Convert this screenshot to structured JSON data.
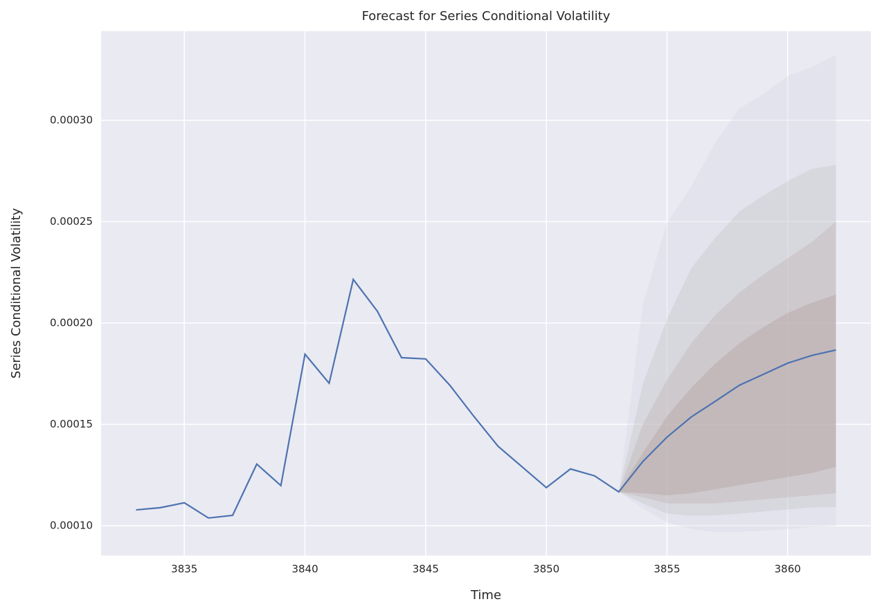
{
  "chart_data": {
    "type": "line",
    "title": "Forecast for Series Conditional Volatility",
    "x_label": "Time",
    "y_label": "Series Conditional Volatility",
    "x": [
      3833,
      3834,
      3835,
      3836,
      3837,
      3838,
      3839,
      3840,
      3841,
      3842,
      3843,
      3844,
      3845,
      3846,
      3847,
      3848,
      3849,
      3850,
      3851,
      3852,
      3853,
      3854,
      3855,
      3856,
      3857,
      3858,
      3859,
      3860,
      3861,
      3862
    ],
    "series": [
      {
        "color": "#4c72b0",
        "values": [
          0.0001078,
          0.0001089,
          0.0001113,
          0.0001038,
          0.0001051,
          0.0001304,
          0.0001198,
          0.0001846,
          0.0001703,
          0.0002215,
          0.0002058,
          0.0001829,
          0.0001823,
          0.0001693,
          0.0001539,
          0.0001392,
          0.000129,
          0.0001188,
          0.000128,
          0.0001246,
          0.0001167,
          0.0001317,
          0.0001437,
          0.0001536,
          0.0001614,
          0.0001693,
          0.0001747,
          0.0001802,
          0.000184,
          0.0001867
        ]
      }
    ],
    "band_x": [
      3853,
      3854,
      3855,
      3856,
      3857,
      3858,
      3859,
      3860,
      3861,
      3862
    ],
    "band_opacity": 0.35,
    "bands": [
      {
        "color": "#d4d6e4",
        "upper": [
          0.0001167,
          0.0002092,
          0.0002495,
          0.0002672,
          0.0002891,
          0.0003058,
          0.000313,
          0.0003218,
          0.0003263,
          0.0003324
        ],
        "lower": [
          0.0001167,
          0.0001085,
          0.0001017,
          9.83e-05,
          9.69e-05,
          9.69e-05,
          9.76e-05,
          9.83e-05,
          9.93e-05,
          0.0001
        ]
      },
      {
        "color": "#c4c2c4",
        "upper": [
          0.0001167,
          0.00017,
          0.000202,
          0.000227,
          0.000242,
          0.000255,
          0.000263,
          0.00027,
          0.000276,
          0.000278
        ],
        "lower": [
          0.0001167,
          0.000111,
          0.000106,
          0.000105,
          0.000105,
          0.000106,
          0.000107,
          0.000108,
          0.000109,
          0.0001092
        ]
      },
      {
        "color": "#bcb0b0",
        "upper": [
          0.0001167,
          0.00015,
          0.000172,
          0.00019,
          0.000204,
          0.000215,
          0.000224,
          0.000232,
          0.00024,
          0.00025
        ],
        "lower": [
          0.0001167,
          0.000114,
          0.000111,
          0.000111,
          0.000111,
          0.000112,
          0.000113,
          0.000114,
          0.000115,
          0.000116
        ]
      },
      {
        "color": "#b09c9c",
        "upper": [
          0.0001167,
          0.000136,
          0.000154,
          0.000168,
          0.00018,
          0.00019,
          0.000198,
          0.000205,
          0.00021,
          0.000214
        ],
        "lower": [
          0.0001167,
          0.000116,
          0.000115,
          0.000116,
          0.000118,
          0.00012,
          0.000122,
          0.000124,
          0.000126,
          0.000129
        ]
      }
    ],
    "xlim": [
      3831.55,
      3863.45
    ],
    "ylim": [
      8.53e-05,
      0.000344
    ],
    "xticks": [
      3835,
      3840,
      3845,
      3850,
      3855,
      3860
    ],
    "yticks": [
      {
        "value": 0.0001,
        "label": "0.00010"
      },
      {
        "value": 0.00015,
        "label": "0.00015"
      },
      {
        "value": 0.0002,
        "label": "0.00020"
      },
      {
        "value": 0.00025,
        "label": "0.00025"
      },
      {
        "value": 0.0003,
        "label": "0.00030"
      }
    ],
    "grid": true
  }
}
